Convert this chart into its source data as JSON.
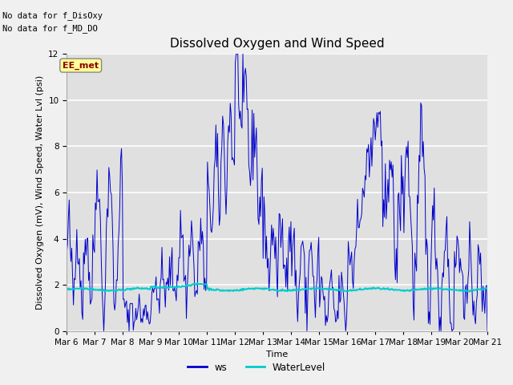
{
  "title": "Dissolved Oxygen and Wind Speed",
  "ylabel": "Dissolved Oxygen (mV), Wind Speed, Water Lvl (psi)",
  "xlabel": "Time",
  "ylim": [
    0,
    12
  ],
  "yticks": [
    0,
    2,
    4,
    6,
    8,
    10,
    12
  ],
  "xtick_labels": [
    "Mar 6",
    "Mar 7",
    "Mar 8",
    "Mar 9",
    "Mar 10",
    "Mar 11",
    "Mar 12",
    "Mar 13",
    "Mar 14",
    "Mar 15",
    "Mar 16",
    "Mar 17",
    "Mar 18",
    "Mar 19",
    "Mar 20",
    "Mar 21"
  ],
  "ws_color": "#0000cc",
  "water_color": "#00cccc",
  "bg_color": "#e8e8e8",
  "plot_bg": "#e0e0e0",
  "fig_bg": "#f0f0f0",
  "legend_ws": "ws",
  "legend_water": "WaterLevel",
  "annotation_1": "No data for f_DisOxy",
  "annotation_2": "No data for f_MD_DO",
  "station_label": "EE_met",
  "title_fontsize": 11,
  "label_fontsize": 8,
  "tick_fontsize": 7.5
}
